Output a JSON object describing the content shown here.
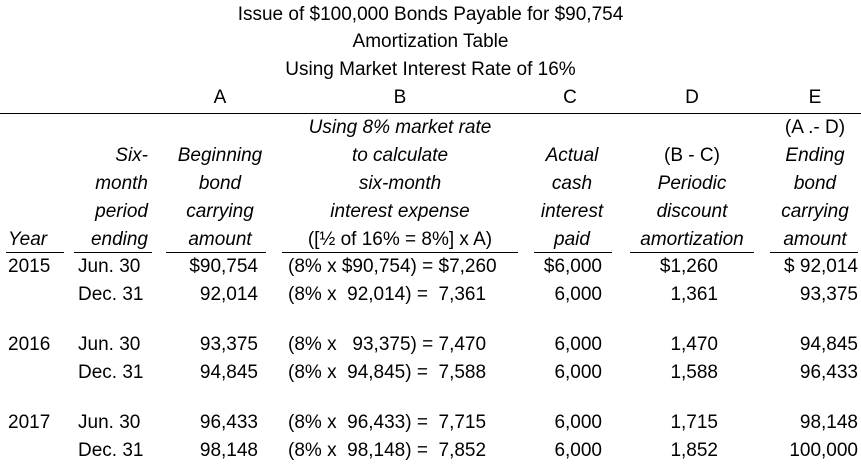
{
  "title": {
    "line1": "Issue of $100,000 Bonds Payable for $90,754",
    "line2": "Amortization Table",
    "line3": "Using Market Interest Rate of 16%"
  },
  "column_letters": {
    "A": "A",
    "B": "B",
    "C": "C",
    "D": "D",
    "E": "E"
  },
  "headers": {
    "year": [
      "Year"
    ],
    "period": [
      "Six-",
      "month",
      "period",
      "ending"
    ],
    "a": [
      "Beginning",
      "bond",
      "carrying",
      "amount"
    ],
    "b": [
      "Using 8% market rate",
      "to calculate",
      "six-month",
      "interest expense",
      "([½ of 16% = 8%] x A)"
    ],
    "c": [
      "Actual",
      "cash",
      "interest",
      "paid"
    ],
    "d": [
      "(B - C)",
      "Periodic",
      "discount",
      "amortization"
    ],
    "e": [
      "(A .- D)",
      "Ending",
      "bond",
      "carrying",
      "amount"
    ]
  },
  "rows": [
    {
      "year": "2015",
      "period": "Jun. 30",
      "a": "$90,754",
      "b": "(8% x $90,754) = $7,260",
      "c": "$6,000",
      "d": "$1,260",
      "e": "$ 92,014"
    },
    {
      "year": "",
      "period": "Dec. 31",
      "a": "92,014",
      "b": "(8% x  92,014) =  7,361",
      "c": "6,000",
      "d": "1,361",
      "e": "93,375"
    },
    {
      "year": "2016",
      "period": "Jun. 30",
      "a": "93,375",
      "b": "(8% x   93,375) = 7,470",
      "c": "6,000",
      "d": "1,470",
      "e": "94,845"
    },
    {
      "year": "",
      "period": "Dec. 31",
      "a": "94,845",
      "b": "(8% x  94,845) =  7,588",
      "c": "6,000",
      "d": "1,588",
      "e": "96,433"
    },
    {
      "year": "2017",
      "period": "Jun. 30",
      "a": "96,433",
      "b": "(8% x  96,433) =  7,715",
      "c": "6,000",
      "d": "1,715",
      "e": "98,148"
    },
    {
      "year": "",
      "period": "Dec. 31",
      "a": "98,148",
      "b": "(8% x  98,148) =  7,852",
      "c": "6,000",
      "d": "1,852",
      "e": "100,000"
    }
  ]
}
